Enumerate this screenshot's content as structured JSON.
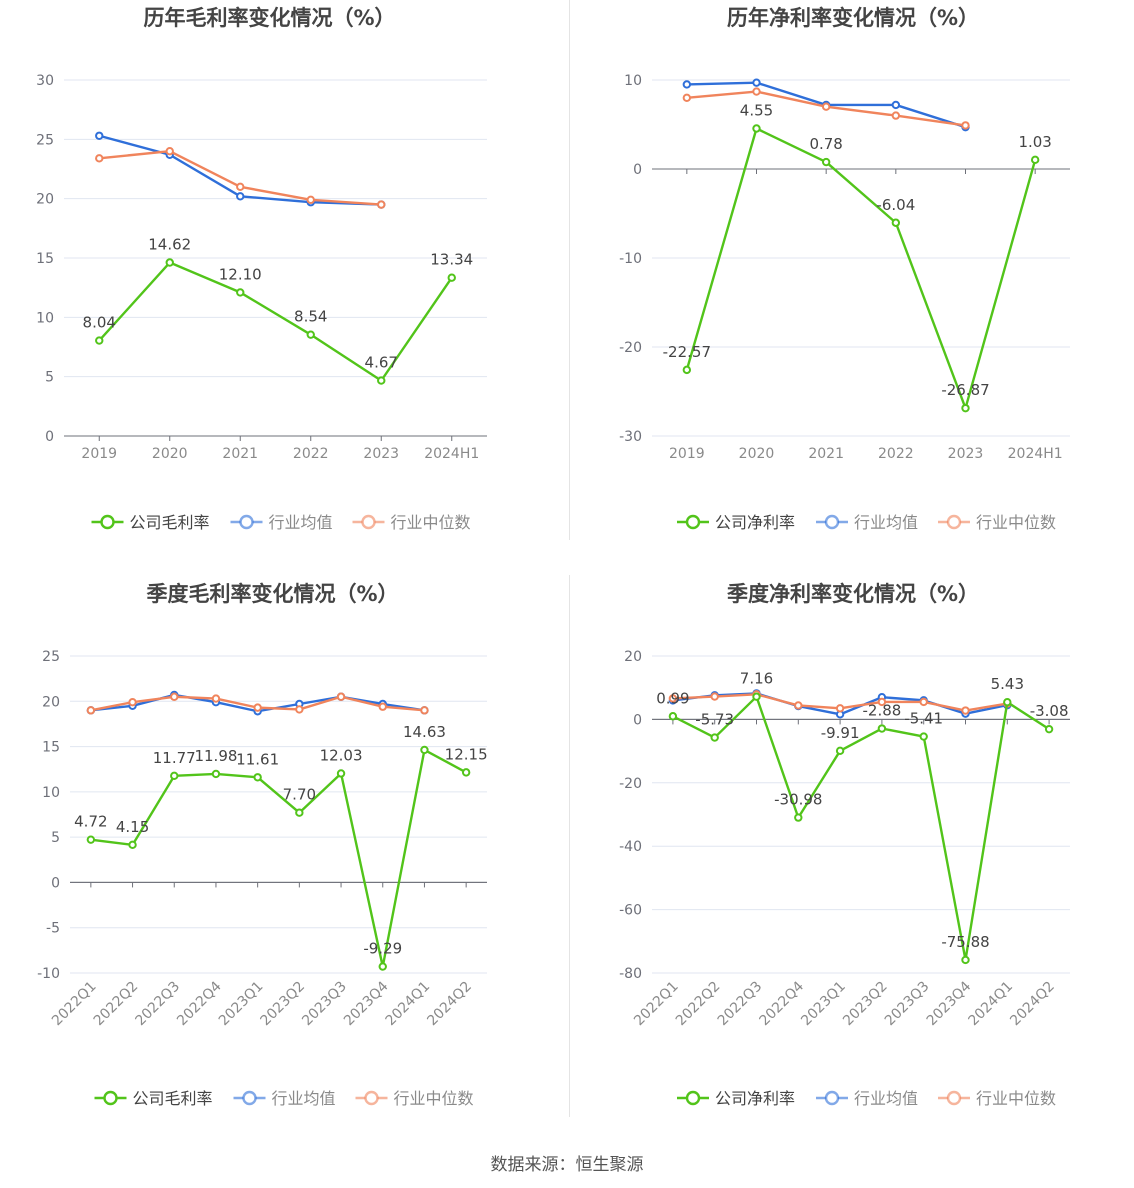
{
  "source_note": "数据来源：恒生聚源",
  "legend_colors": {
    "company": "#52c41a",
    "avg": "#2f6fd9",
    "median": "#f0845c"
  },
  "chart_data": [
    {
      "type": "line",
      "title": "历年毛利率变化情况（%）",
      "categories": [
        "2019",
        "2020",
        "2021",
        "2022",
        "2023",
        "2024H1"
      ],
      "ylim": [
        0,
        30
      ],
      "yticks": [
        0,
        5,
        10,
        15,
        20,
        25,
        30
      ],
      "rotate_xlabels": false,
      "series": [
        {
          "name": "公司毛利率",
          "color": "#52c41a",
          "values": [
            8.04,
            14.62,
            12.1,
            8.54,
            4.67,
            13.34
          ],
          "labels": [
            "8.04",
            "14.62",
            "12.10",
            "8.54",
            "4.67",
            "13.34"
          ]
        },
        {
          "name": "行业均值",
          "color": "#2f6fd9",
          "values": [
            25.3,
            23.7,
            20.2,
            19.7,
            19.5,
            null
          ]
        },
        {
          "name": "行业中位数",
          "color": "#f0845c",
          "values": [
            23.4,
            24.0,
            21.0,
            19.9,
            19.5,
            null
          ]
        }
      ]
    },
    {
      "type": "line",
      "title": "历年净利率变化情况（%）",
      "categories": [
        "2019",
        "2020",
        "2021",
        "2022",
        "2023",
        "2024H1"
      ],
      "ylim": [
        -30,
        10
      ],
      "yticks": [
        -30,
        -20,
        -10,
        0,
        10
      ],
      "rotate_xlabels": false,
      "series": [
        {
          "name": "公司净利率",
          "color": "#52c41a",
          "values": [
            -22.57,
            4.55,
            0.78,
            -6.04,
            -26.87,
            1.03
          ],
          "labels": [
            "-22.57",
            "4.55",
            "0.78",
            "-6.04",
            "-26.87",
            "1.03"
          ]
        },
        {
          "name": "行业均值",
          "color": "#2f6fd9",
          "values": [
            9.5,
            9.7,
            7.2,
            7.2,
            4.7,
            null
          ]
        },
        {
          "name": "行业中位数",
          "color": "#f0845c",
          "values": [
            8.0,
            8.7,
            7.0,
            6.0,
            4.9,
            null
          ]
        }
      ]
    },
    {
      "type": "line",
      "title": "季度毛利率变化情况（%）",
      "categories": [
        "2022Q1",
        "2022Q2",
        "2022Q3",
        "2022Q4",
        "2023Q1",
        "2023Q2",
        "2023Q3",
        "2023Q4",
        "2024Q1",
        "2024Q2"
      ],
      "ylim": [
        -10,
        25
      ],
      "yticks": [
        -10,
        -5,
        0,
        5,
        10,
        15,
        20,
        25
      ],
      "rotate_xlabels": true,
      "series": [
        {
          "name": "公司毛利率",
          "color": "#52c41a",
          "values": [
            4.72,
            4.15,
            11.77,
            11.98,
            11.61,
            7.7,
            12.03,
            -9.29,
            14.63,
            12.15
          ],
          "labels": [
            "4.72",
            "4.15",
            "11.77",
            "11.98",
            "11.61",
            "7.70",
            "12.03",
            "-9.29",
            "14.63",
            "12.15"
          ]
        },
        {
          "name": "行业均值",
          "color": "#2f6fd9",
          "values": [
            19.0,
            19.5,
            20.7,
            19.9,
            18.9,
            19.7,
            20.5,
            19.7,
            19.0,
            null
          ]
        },
        {
          "name": "行业中位数",
          "color": "#f0845c",
          "values": [
            19.0,
            19.9,
            20.5,
            20.3,
            19.3,
            19.1,
            20.5,
            19.4,
            19.0,
            null
          ]
        }
      ]
    },
    {
      "type": "line",
      "title": "季度净利率变化情况（%）",
      "categories": [
        "2022Q1",
        "2022Q2",
        "2022Q3",
        "2022Q4",
        "2023Q1",
        "2023Q2",
        "2023Q3",
        "2023Q4",
        "2024Q1",
        "2024Q2"
      ],
      "ylim": [
        -80,
        20
      ],
      "yticks": [
        -80,
        -60,
        -40,
        -20,
        0,
        20
      ],
      "rotate_xlabels": true,
      "series": [
        {
          "name": "公司净利率",
          "color": "#52c41a",
          "values": [
            0.99,
            -5.73,
            7.16,
            -30.98,
            -9.91,
            -2.88,
            -5.41,
            -75.88,
            5.43,
            -3.08
          ],
          "labels": [
            "0.99",
            "-5.73",
            "7.16",
            "-30.98",
            "-9.91",
            "-2.88",
            "-5.41",
            "-75.88",
            "5.43",
            "-3.08"
          ]
        },
        {
          "name": "行业均值",
          "color": "#2f6fd9",
          "values": [
            6.0,
            7.6,
            8.2,
            4.2,
            1.6,
            7.0,
            6.0,
            1.8,
            4.5,
            null
          ]
        },
        {
          "name": "行业中位数",
          "color": "#f0845c",
          "values": [
            6.6,
            7.2,
            7.9,
            4.4,
            3.5,
            5.5,
            5.5,
            2.8,
            5.0,
            null
          ]
        }
      ]
    }
  ]
}
